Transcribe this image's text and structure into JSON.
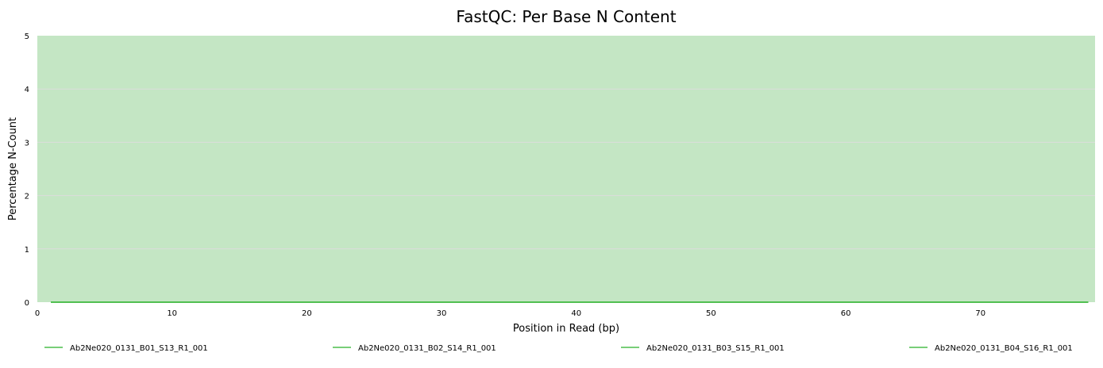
{
  "chart_data": {
    "type": "line",
    "title": "FastQC: Per Base N Content",
    "xlabel": "Position in Read (bp)",
    "ylabel": "Percentage N-Count",
    "xlim": [
      0,
      78.5
    ],
    "ylim": [
      0,
      5
    ],
    "x_ticks": [
      0,
      10,
      20,
      30,
      40,
      50,
      60,
      70
    ],
    "y_ticks": [
      0,
      1,
      2,
      3,
      4,
      5
    ],
    "grid": true,
    "legend_position": "bottom",
    "background_band": {
      "from": 0,
      "to": 5,
      "color": "#c4e6c4"
    },
    "series": [
      {
        "name": "Ab2Ne020_0131_B01_S13_R1_001",
        "color": "#4cbe4c",
        "x": [
          1,
          2,
          3,
          4,
          5,
          6,
          7,
          8,
          9,
          10,
          15,
          20,
          25,
          30,
          35,
          40,
          45,
          50,
          55,
          60,
          65,
          70,
          75,
          78
        ],
        "values": [
          0,
          0,
          0,
          0,
          0,
          0,
          0,
          0,
          0,
          0,
          0,
          0,
          0,
          0,
          0,
          0,
          0,
          0,
          0,
          0,
          0,
          0,
          0,
          0
        ]
      },
      {
        "name": "Ab2Ne020_0131_B02_S14_R1_001",
        "color": "#4cbe4c",
        "x": [
          1,
          2,
          3,
          4,
          5,
          6,
          7,
          8,
          9,
          10,
          15,
          20,
          25,
          30,
          35,
          40,
          45,
          50,
          55,
          60,
          65,
          70,
          75,
          78
        ],
        "values": [
          0,
          0,
          0,
          0,
          0,
          0,
          0,
          0,
          0,
          0,
          0,
          0,
          0,
          0,
          0,
          0,
          0,
          0,
          0,
          0,
          0,
          0,
          0,
          0
        ]
      },
      {
        "name": "Ab2Ne020_0131_B03_S15_R1_001",
        "color": "#4cbe4c",
        "x": [
          1,
          2,
          3,
          4,
          5,
          6,
          7,
          8,
          9,
          10,
          15,
          20,
          25,
          30,
          35,
          40,
          45,
          50,
          55,
          60,
          65,
          70,
          75,
          78
        ],
        "values": [
          0,
          0,
          0,
          0,
          0,
          0,
          0,
          0,
          0,
          0,
          0,
          0,
          0,
          0,
          0,
          0,
          0,
          0,
          0,
          0,
          0,
          0,
          0,
          0
        ]
      },
      {
        "name": "Ab2Ne020_0131_B04_S16_R1_001",
        "color": "#4cbe4c",
        "x": [
          1,
          2,
          3,
          4,
          5,
          6,
          7,
          8,
          9,
          10,
          15,
          20,
          25,
          30,
          35,
          40,
          45,
          50,
          55,
          60,
          65,
          70,
          75,
          78
        ],
        "values": [
          0,
          0,
          0,
          0,
          0,
          0,
          0,
          0,
          0,
          0,
          0,
          0,
          0,
          0,
          0,
          0,
          0,
          0,
          0,
          0,
          0,
          0,
          0,
          0
        ]
      }
    ]
  }
}
